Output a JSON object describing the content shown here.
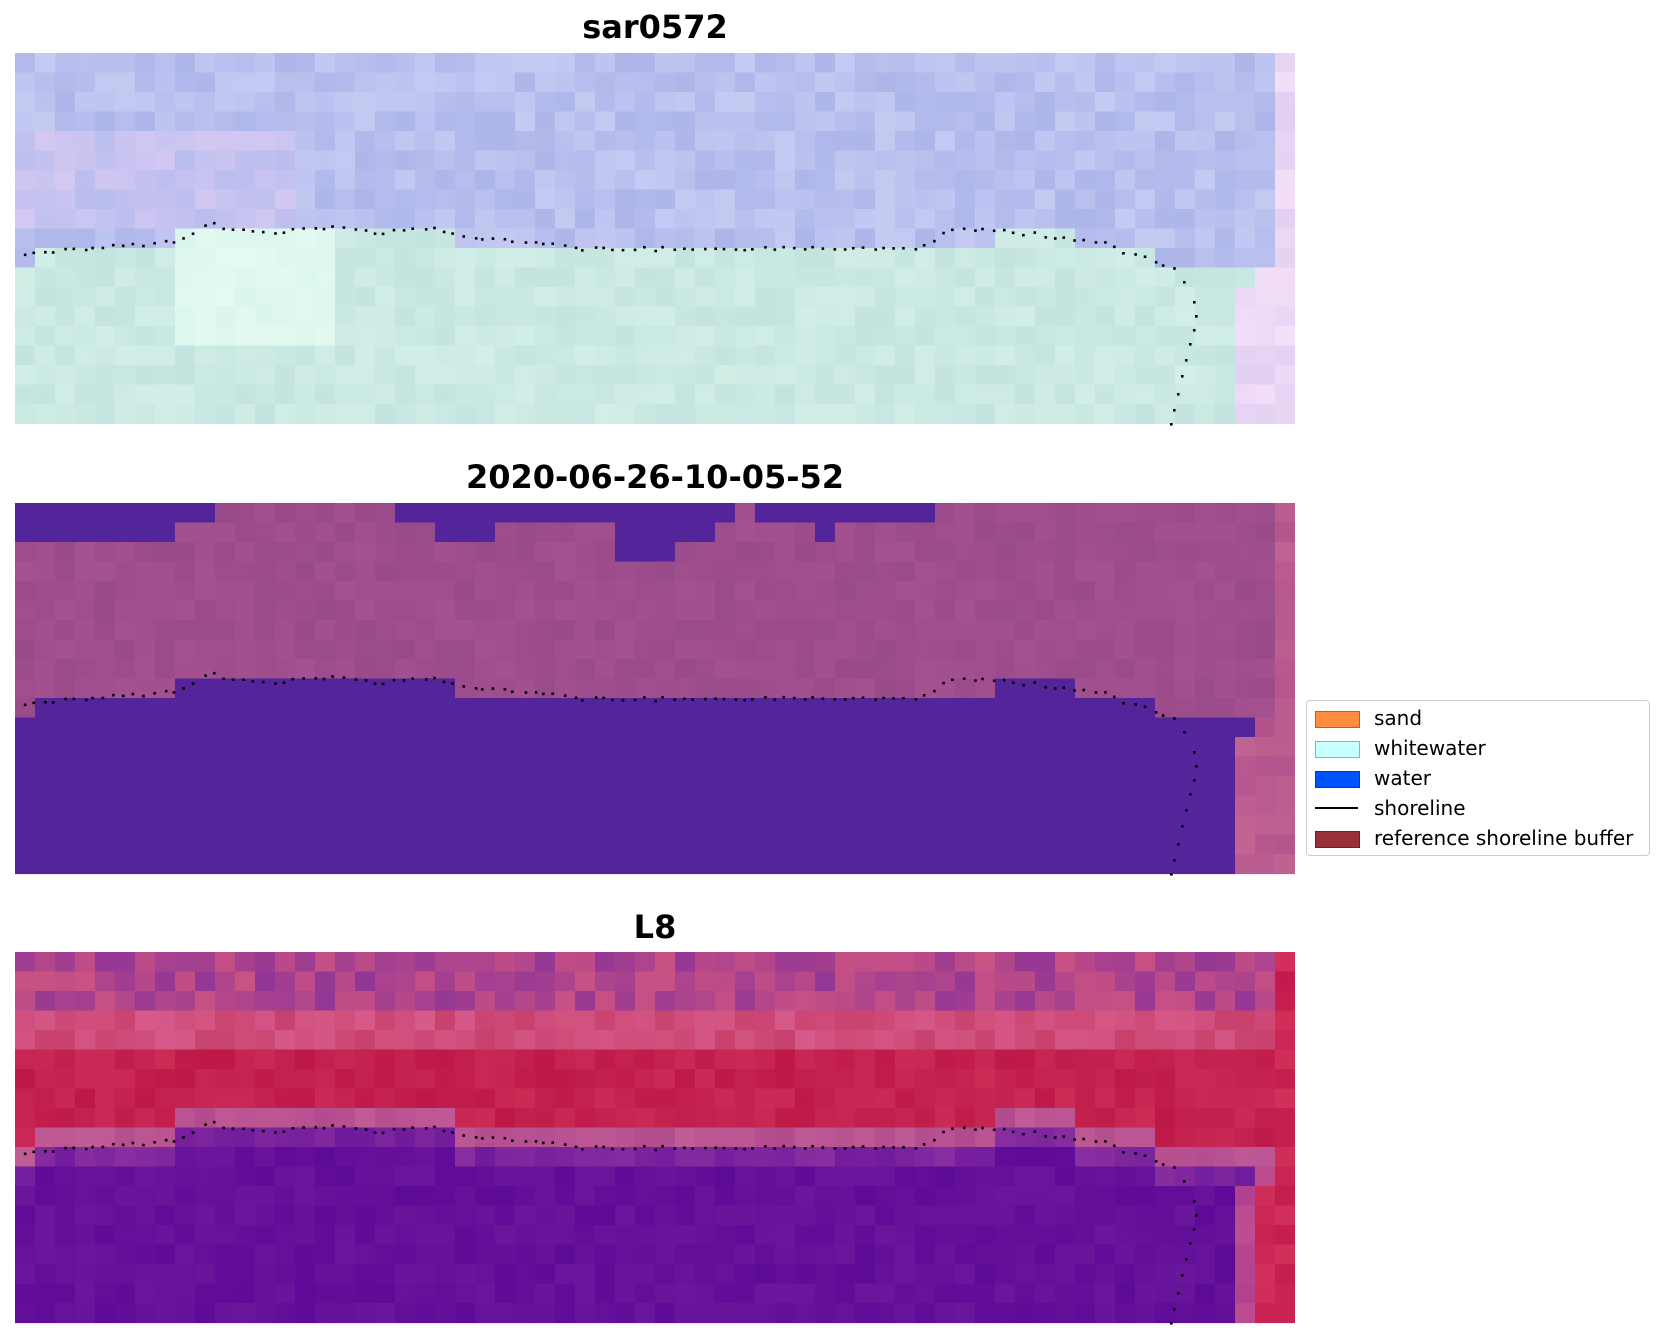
{
  "panels": [
    {
      "title": "sar0572",
      "image": "sar-rgb-composite"
    },
    {
      "title": "2020-06-26-10-05-52",
      "image": "classified-overlay"
    },
    {
      "title": "L8",
      "image": "mndwi-index"
    }
  ],
  "legend": {
    "items": [
      {
        "label": "sand",
        "type": "patch",
        "color": "#ff8c3f"
      },
      {
        "label": "whitewater",
        "type": "patch",
        "color": "#c8ffff"
      },
      {
        "label": "water",
        "type": "patch",
        "color": "#0054ff"
      },
      {
        "label": "shoreline",
        "type": "line",
        "color": "#000000"
      },
      {
        "label": "reference shoreline buffer",
        "type": "patch",
        "color": "#98313a"
      }
    ]
  },
  "colors": {
    "shoreline_points": "#000000",
    "panel1_sea": "#b3bbe3",
    "panel1_beach": "#cbe8e2",
    "panel2_background": "#9c4a8c",
    "panel2_water": "#54259a",
    "panel3_land": "#c0174a",
    "panel3_water": "#63089a"
  }
}
